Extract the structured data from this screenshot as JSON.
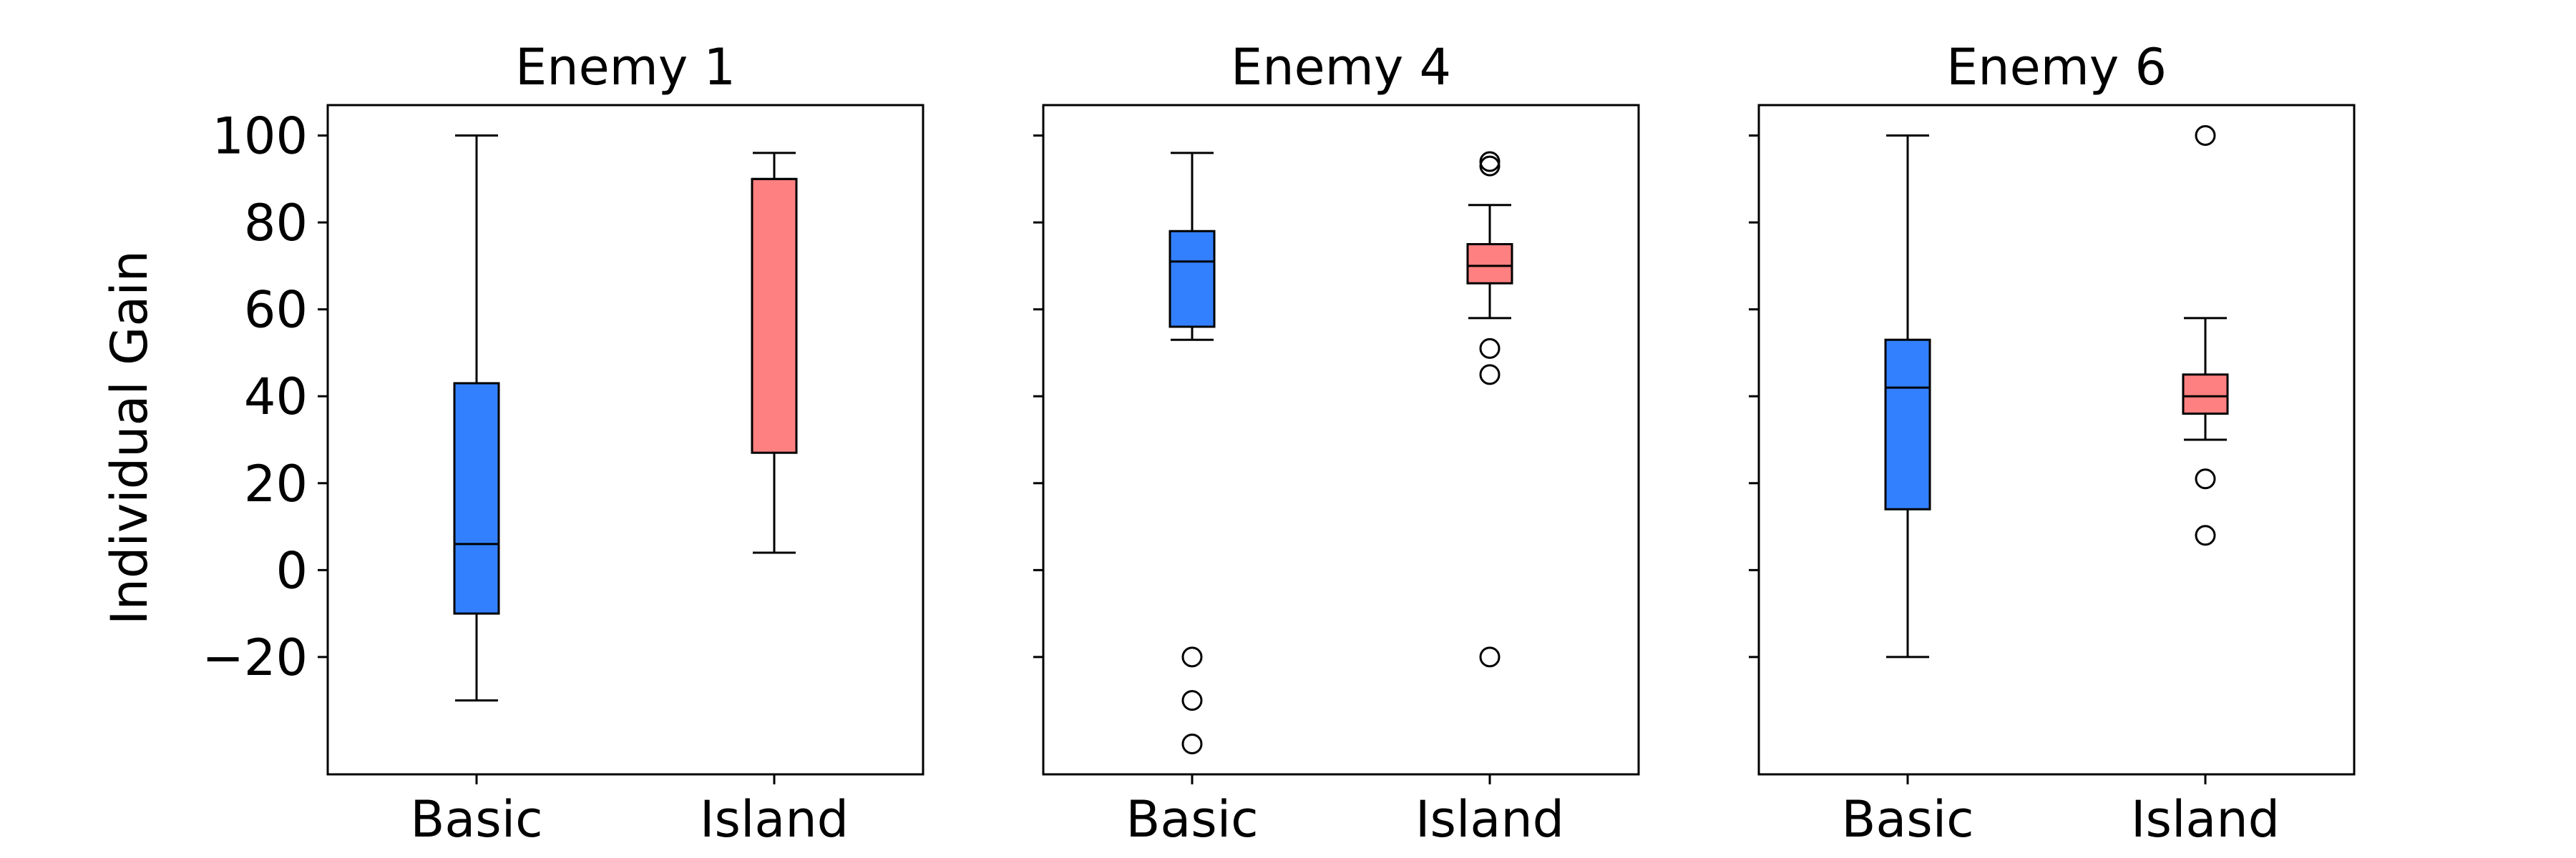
{
  "chart_data": {
    "type": "box",
    "ylabel": "Individual Gain",
    "yticks": [
      -20,
      0,
      20,
      40,
      60,
      80,
      100
    ],
    "ytick_labels": [
      "−20",
      "0",
      "20",
      "40",
      "60",
      "80",
      "100"
    ],
    "ylim": [
      -47,
      107
    ],
    "categories": [
      "Basic",
      "Island"
    ],
    "colors": {
      "Basic": "#3380ff",
      "Island": "#ff8080"
    },
    "panels": [
      {
        "title": "Enemy 1",
        "boxes": [
          {
            "category": "Basic",
            "whisker_low": -30,
            "q1": -10,
            "median": 6,
            "q3": 43,
            "whisker_high": 100,
            "outliers": []
          },
          {
            "category": "Island",
            "whisker_low": 4,
            "q1": 27,
            "median": 90,
            "q3": 90,
            "whisker_high": 96,
            "outliers": []
          }
        ]
      },
      {
        "title": "Enemy 4",
        "boxes": [
          {
            "category": "Basic",
            "whisker_low": 53,
            "q1": 56,
            "median": 71,
            "q3": 78,
            "whisker_high": 96,
            "outliers": [
              -20,
              -30,
              -40
            ]
          },
          {
            "category": "Island",
            "whisker_low": 58,
            "q1": 66,
            "median": 70,
            "q3": 75,
            "whisker_high": 84,
            "outliers": [
              94,
              93,
              51,
              45,
              -20
            ]
          }
        ]
      },
      {
        "title": "Enemy 6",
        "boxes": [
          {
            "category": "Basic",
            "whisker_low": -20,
            "q1": 14,
            "median": 42,
            "q3": 53,
            "whisker_high": 100,
            "outliers": []
          },
          {
            "category": "Island",
            "whisker_low": 30,
            "q1": 36,
            "median": 40,
            "q3": 45,
            "whisker_high": 58,
            "outliers": [
              100,
              21,
              8
            ]
          }
        ]
      }
    ]
  }
}
